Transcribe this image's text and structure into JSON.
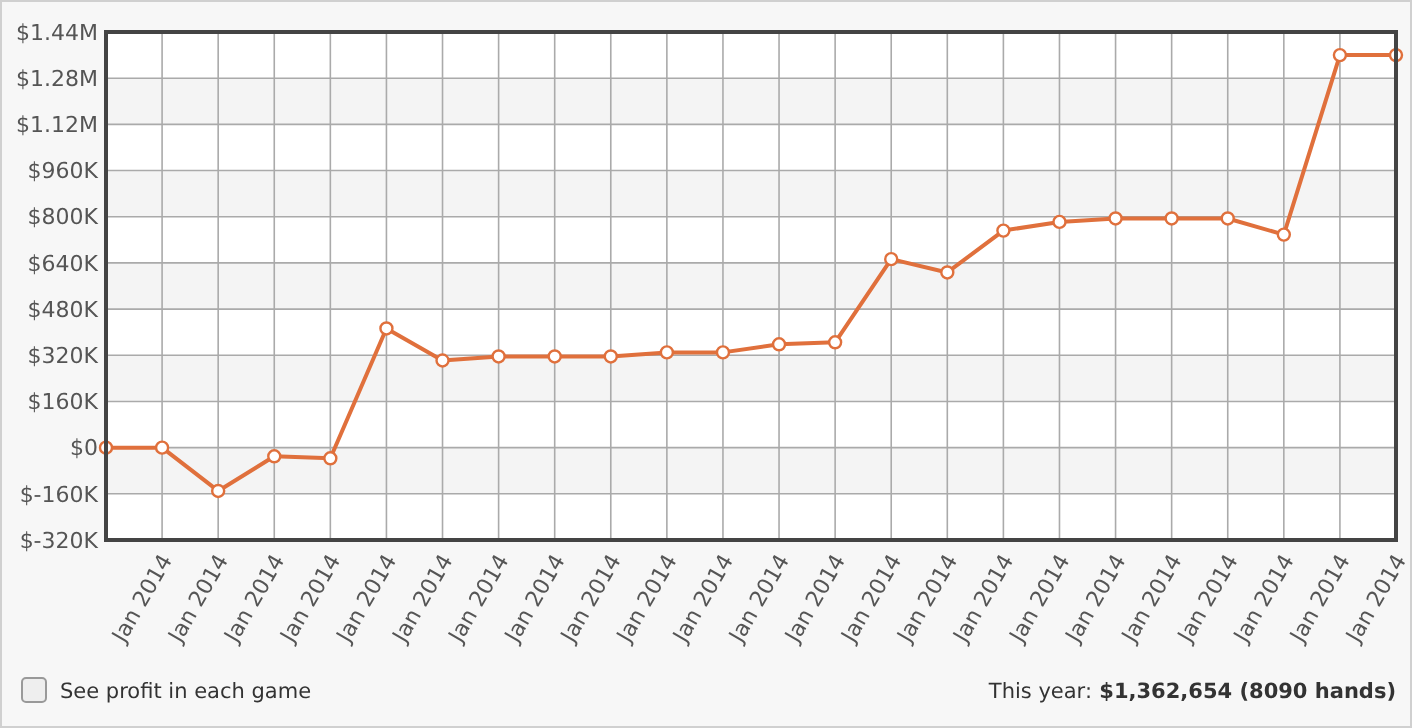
{
  "chart_data": {
    "type": "line",
    "categories": [
      null,
      "Jan 2014",
      "Jan 2014",
      "Jan 2014",
      "Jan 2014",
      "Jan 2014",
      "Jan 2014",
      "Jan 2014",
      "Jan 2014",
      "Jan 2014",
      "Jan 2014",
      "Jan 2014",
      "Jan 2014",
      "Jan 2014",
      "Jan 2014",
      "Jan 2014",
      "Jan 2014",
      "Jan 2014",
      "Jan 2014",
      "Jan 2014",
      "Jan 2014",
      "Jan 2014",
      "Jan 2014",
      "Jan 2014"
    ],
    "series": [
      {
        "color": "#e0703c",
        "values": [
          0,
          0,
          -150000,
          -30000,
          -37000,
          413000,
          302000,
          316000,
          316000,
          316000,
          330000,
          330000,
          358000,
          365000,
          653000,
          607000,
          752000,
          782000,
          794000,
          794000,
          794000,
          738000,
          1360000,
          1360000
        ]
      }
    ],
    "ylim": [
      -320000,
      1440000
    ],
    "yticks": [
      {
        "value": -320000,
        "label": "$-320K"
      },
      {
        "value": -160000,
        "label": "$-160K"
      },
      {
        "value": 0,
        "label": "$0"
      },
      {
        "value": 160000,
        "label": "$160K"
      },
      {
        "value": 320000,
        "label": "$320K"
      },
      {
        "value": 480000,
        "label": "$480K"
      },
      {
        "value": 640000,
        "label": "$640K"
      },
      {
        "value": 800000,
        "label": "$800K"
      },
      {
        "value": 960000,
        "label": "$960K"
      },
      {
        "value": 1120000,
        "label": "$1.12M"
      },
      {
        "value": 1280000,
        "label": "$1.28M"
      },
      {
        "value": 1440000,
        "label": "$1.44M"
      }
    ],
    "grid": true,
    "marker": "circle",
    "line_style": "solid",
    "annotations": [
      "See profit in each game",
      "This year: $1,362,654 (8090 hands)"
    ]
  }
}
